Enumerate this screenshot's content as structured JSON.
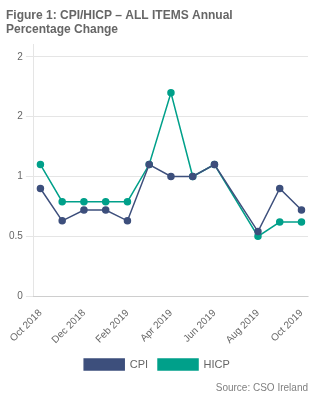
{
  "chart_data": {
    "type": "line",
    "title": "Figure 1: CPI/HICP – ALL ITEMS Annual\nPercentage Change",
    "annotations": [
      "Source: CSO Ireland"
    ],
    "x": [
      0,
      1,
      2,
      3,
      4,
      5,
      6,
      7,
      8,
      10,
      11,
      12
    ],
    "series": [
      {
        "name": "CPI",
        "color": "#3d4f7c",
        "marker": "circle",
        "values": [
          0.9,
          0.63,
          0.72,
          0.72,
          0.63,
          1.1,
          1.0,
          1.0,
          1.1,
          0.54,
          0.9,
          0.72
        ]
      },
      {
        "name": "HICP",
        "color": "#00a08a",
        "marker": "circle",
        "values": [
          1.1,
          0.79,
          0.79,
          0.79,
          0.79,
          1.1,
          1.7,
          1.0,
          1.1,
          0.5,
          0.62,
          0.62
        ]
      }
    ],
    "xlim": [
      -0.3,
      12.3
    ],
    "xticks": [
      {
        "value": 0,
        "label": "Oct 2018"
      },
      {
        "value": 2,
        "label": "Dec 2018"
      },
      {
        "value": 4,
        "label": "Feb 2019"
      },
      {
        "value": 6,
        "label": "Apr 2019"
      },
      {
        "value": 8,
        "label": "Jun 2019"
      },
      {
        "value": 10,
        "label": "Aug 2019"
      },
      {
        "value": 12,
        "label": "Oct 2019"
      }
    ],
    "ylim": [
      0,
      2.1
    ],
    "yticks": [
      0,
      0.5,
      1,
      {
        "value": 1.5,
        "label": "2"
      },
      2
    ],
    "grid": "y",
    "legend": "bottom"
  }
}
